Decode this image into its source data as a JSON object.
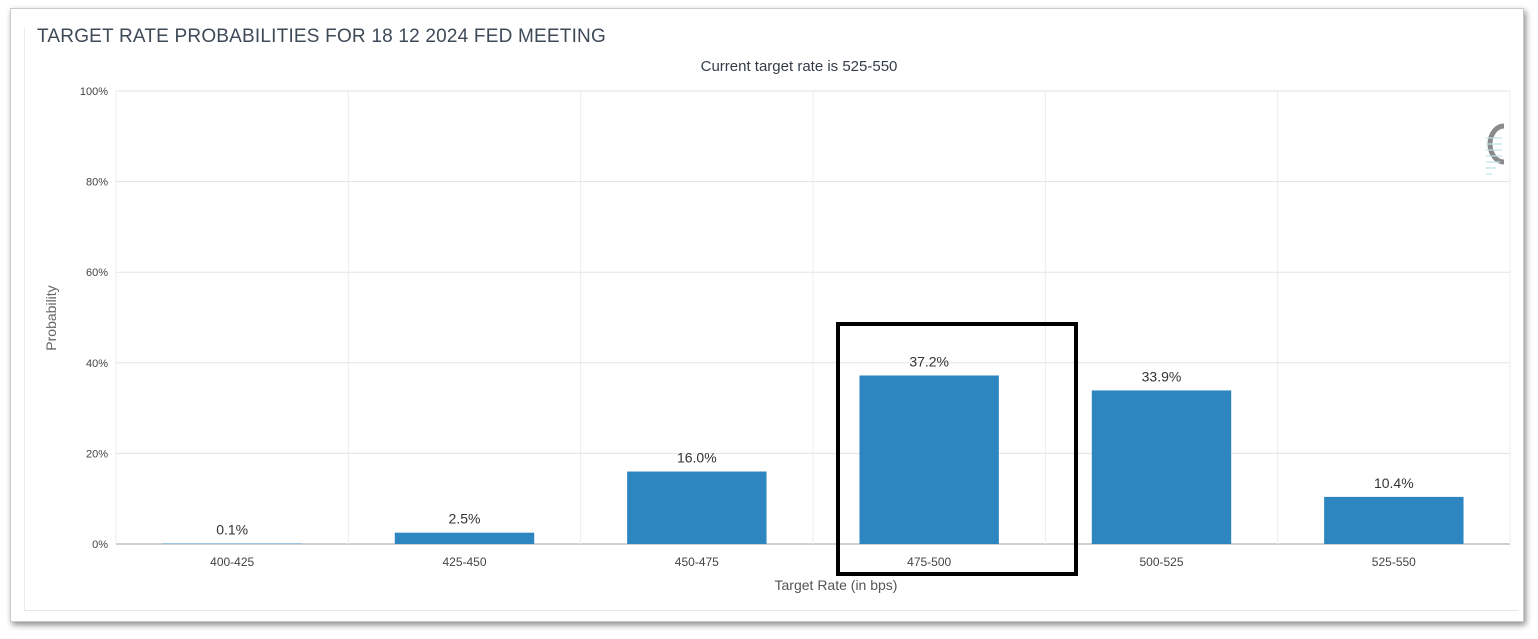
{
  "title": "TARGET RATE PROBABILITIES FOR 18 12 2024 FED MEETING",
  "subtitle": "Current target rate is 525-550",
  "chart_data": {
    "type": "bar",
    "categories": [
      "400-425",
      "425-450",
      "450-475",
      "475-500",
      "500-525",
      "525-550"
    ],
    "values": [
      0.1,
      2.5,
      16.0,
      37.2,
      33.9,
      10.4
    ],
    "data_labels": [
      "0.1%",
      "2.5%",
      "16.0%",
      "37.2%",
      "33.9%",
      "10.4%"
    ],
    "xlabel": "Target Rate (in bps)",
    "ylabel": "Probability",
    "ylim": [
      0,
      100
    ],
    "yticks": [
      "0%",
      "20%",
      "40%",
      "60%",
      "80%",
      "100%"
    ],
    "ytick_values": [
      0,
      20,
      40,
      60,
      80,
      100
    ],
    "grid": true,
    "bar_color": "#2e86c1",
    "highlighted_category": "475-500"
  }
}
